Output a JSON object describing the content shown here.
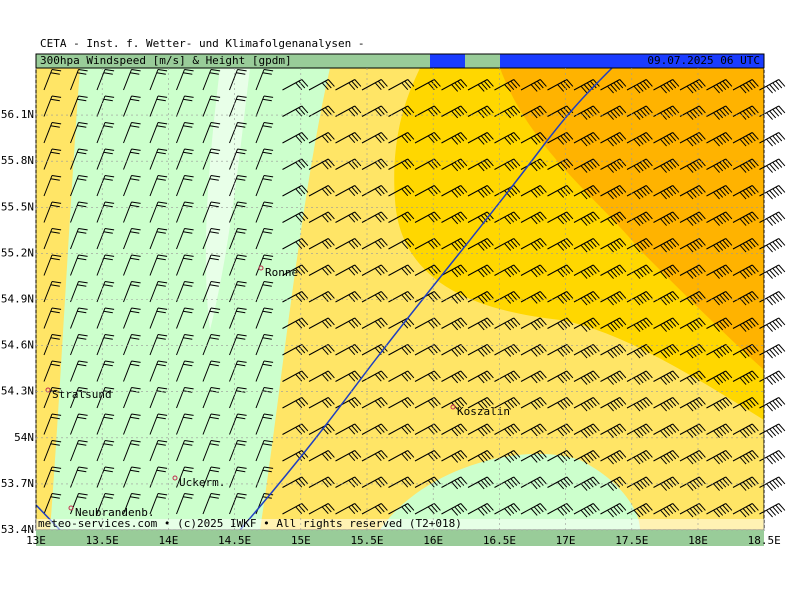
{
  "header": {
    "title": "CETA - Inst. f. Wetter- und Klimafolgenanalysen -",
    "parameter": "300hpa Windspeed [m/s] & Height [gpdm]",
    "valid_time": "09.07.2025 06 UTC"
  },
  "map": {
    "x_labels": [
      "13E",
      "13.5E",
      "14E",
      "14.5E",
      "15E",
      "15.5E",
      "16E",
      "16.5E",
      "17E",
      "17.5E",
      "18E",
      "18.5E"
    ],
    "y_labels": [
      "53.4N",
      "53.7N",
      "54N",
      "54.3N",
      "54.6N",
      "54.9N",
      "55.2N",
      "55.5N",
      "55.8N",
      "56.1N"
    ],
    "cities": [
      "Ronne",
      "Stralsund",
      "Koszalin",
      "Uckerm.",
      "Neubrandenb."
    ],
    "footer": "meteo-services.com • (c)2025 IWKF • All rights reserved (T2+018)"
  }
}
